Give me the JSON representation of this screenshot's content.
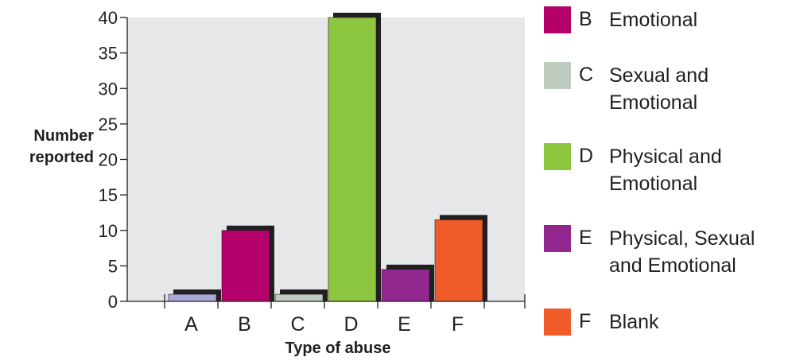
{
  "chart_data": {
    "type": "bar",
    "categories": [
      "A",
      "B",
      "C",
      "D",
      "E",
      "F"
    ],
    "values": [
      1,
      10,
      1,
      40,
      4.5,
      11.5
    ],
    "colors": [
      "#aaaad8",
      "#b5006b",
      "#bfcbbf",
      "#8dc63f",
      "#92278f",
      "#f15a29"
    ],
    "ylabel": "Number\nreported",
    "xlabel": "Type of abuse",
    "ylim": [
      0,
      40
    ],
    "yticks": [
      0,
      5,
      10,
      15,
      20,
      25,
      30,
      35,
      40
    ],
    "plot_background": "#e6e7e8",
    "shadow_color": "#231f20",
    "legend_position": "right"
  },
  "legend": [
    {
      "key": "B",
      "label": "Emotional",
      "color": "#b5006b"
    },
    {
      "key": "C",
      "label": "Sexual and Emotional",
      "color": "#bfcbbf"
    },
    {
      "key": "D",
      "label": "Physical and Emotional",
      "color": "#8dc63f"
    },
    {
      "key": "E",
      "label": "Physical, Sexual and Emotional",
      "color": "#92278f"
    },
    {
      "key": "F",
      "label": "Blank",
      "color": "#f15a29"
    }
  ]
}
